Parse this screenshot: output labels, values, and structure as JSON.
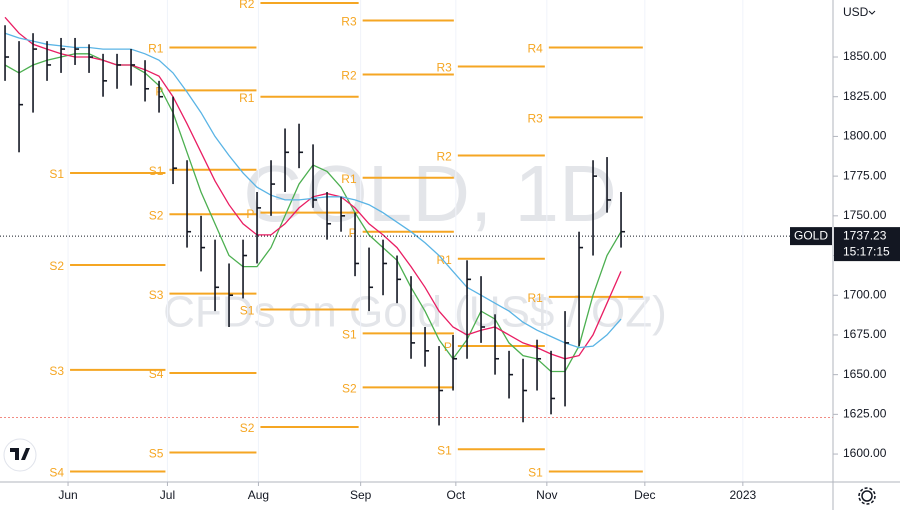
{
  "chart_data": {
    "type": "ohlc",
    "title": "GOLD, 1D",
    "subtitle": "CFDs on Gold (US$ / OZ)",
    "symbol": "GOLD",
    "currency": "USD",
    "last_price": 1737.23,
    "countdown": "15:17:15",
    "categories": [
      null,
      null,
      null,
      null,
      null,
      null,
      null,
      null,
      null,
      null,
      null,
      null,
      null,
      null,
      null,
      null,
      null,
      null,
      null,
      null,
      null,
      null,
      null,
      null,
      null,
      null,
      null,
      null,
      null,
      null,
      null,
      null,
      null,
      null,
      null,
      null,
      null,
      null,
      null,
      null,
      null,
      null,
      null,
      null,
      null
    ],
    "high": [
      1870,
      1860,
      1865,
      1860,
      1862,
      1862,
      1858,
      1852,
      1852,
      1855,
      1848,
      1835,
      1825,
      1785,
      1750,
      1735,
      1720,
      1735,
      1765,
      1785,
      1805,
      1808,
      1795,
      1765,
      1762,
      1752,
      1730,
      1735,
      1725,
      1712,
      1680,
      1668,
      1675,
      1722,
      1712,
      1688,
      1665,
      1660,
      1672,
      1665,
      1690,
      1740,
      1785,
      1787,
      1765
    ],
    "low": [
      1835,
      1790,
      1815,
      1835,
      1840,
      1845,
      1840,
      1825,
      1830,
      1832,
      1822,
      1815,
      1770,
      1730,
      1715,
      1690,
      1680,
      1698,
      1720,
      1750,
      1765,
      1780,
      1755,
      1735,
      1740,
      1712,
      1690,
      1700,
      1695,
      1660,
      1655,
      1618,
      1640,
      1660,
      1670,
      1650,
      1635,
      1620,
      1640,
      1625,
      1630,
      1668,
      1725,
      1752,
      1730
    ],
    "close": [
      1850,
      1820,
      1855,
      1845,
      1855,
      1855,
      1850,
      1835,
      1845,
      1845,
      1830,
      1825,
      1780,
      1740,
      1730,
      1705,
      1700,
      1725,
      1755,
      1770,
      1790,
      1790,
      1760,
      1745,
      1750,
      1720,
      1705,
      1720,
      1710,
      1670,
      1665,
      1640,
      1660,
      1710,
      1680,
      1660,
      1650,
      1640,
      1660,
      1635,
      1670,
      1730,
      1775,
      1760,
      1740
    ],
    "bar_color": "#131722",
    "series": [
      {
        "color": "#4caf50",
        "values": [
          1845,
          1840,
          1845,
          1848,
          1850,
          1852,
          1852,
          1848,
          1845,
          1845,
          1840,
          1832,
          1815,
          1790,
          1765,
          1745,
          1725,
          1718,
          1718,
          1730,
          1750,
          1770,
          1782,
          1778,
          1768,
          1752,
          1738,
          1730,
          1722,
          1705,
          1690,
          1672,
          1660,
          1672,
          1690,
          1685,
          1670,
          1662,
          1660,
          1652,
          1652,
          1668,
          1700,
          1725,
          1740
        ]
      },
      {
        "color": "#e91e63",
        "values": [
          1875,
          1865,
          1858,
          1855,
          1852,
          1850,
          1850,
          1848,
          1845,
          1845,
          1842,
          1838,
          1825,
          1808,
          1790,
          1772,
          1757,
          1745,
          1738,
          1738,
          1745,
          1755,
          1762,
          1764,
          1762,
          1755,
          1745,
          1738,
          1730,
          1718,
          1705,
          1690,
          1680,
          1675,
          1678,
          1680,
          1675,
          1670,
          1667,
          1663,
          1660,
          1662,
          1675,
          1695,
          1715
        ]
      },
      {
        "color": "#5ab4e5",
        "values": [
          1865,
          1862,
          1860,
          1858,
          1857,
          1856,
          1856,
          1855,
          1855,
          1855,
          1852,
          1848,
          1840,
          1828,
          1815,
          1800,
          1788,
          1777,
          1768,
          1763,
          1760,
          1760,
          1761,
          1762,
          1762,
          1760,
          1757,
          1752,
          1746,
          1740,
          1733,
          1725,
          1715,
          1705,
          1700,
          1695,
          1690,
          1683,
          1678,
          1674,
          1670,
          1667,
          1668,
          1675,
          1685
        ]
      }
    ],
    "pivot_color": "#f5a623",
    "pivots": [
      null,
      [
        {
          "label": "S1",
          "value": 1777
        },
        {
          "label": "S2",
          "value": 1719
        },
        {
          "label": "S3",
          "value": 1653
        },
        {
          "label": "S4",
          "value": 1589
        }
      ],
      [
        {
          "label": "R1",
          "value": 1856
        },
        {
          "label": "P",
          "value": 1829
        },
        {
          "label": "S1",
          "value": 1779
        },
        {
          "label": "S2",
          "value": 1751
        },
        {
          "label": "S3",
          "value": 1701
        },
        {
          "label": "S4",
          "value": 1651
        },
        {
          "label": "S5",
          "value": 1601
        }
      ],
      [
        {
          "label": "R2",
          "value": 1884
        },
        {
          "label": "R1",
          "value": 1825
        },
        {
          "label": "P",
          "value": 1752
        },
        {
          "label": "S1",
          "value": 1691
        },
        {
          "label": "S2",
          "value": 1617
        }
      ],
      [
        {
          "label": "R3",
          "value": 1873
        },
        {
          "label": "R2",
          "value": 1839
        },
        {
          "label": "R1",
          "value": 1774
        },
        {
          "label": "P",
          "value": 1740
        },
        {
          "label": "S1",
          "value": 1676
        },
        {
          "label": "S2",
          "value": 1642
        }
      ],
      [
        {
          "label": "R3",
          "value": 1844
        },
        {
          "label": "R2",
          "value": 1788
        },
        {
          "label": "R1",
          "value": 1723
        },
        {
          "label": "P",
          "value": 1668
        },
        {
          "label": "S1",
          "value": 1603
        }
      ],
      [
        {
          "label": "R4",
          "value": 1856
        },
        {
          "label": "R3",
          "value": 1812
        },
        {
          "label": "R1",
          "value": 1699
        },
        {
          "label": "S1",
          "value": 1589
        }
      ]
    ],
    "hlines": [
      {
        "value": 1623,
        "color": "#f28b82"
      }
    ],
    "xlim": [
      -0.36,
      59.14
    ],
    "ylim": [
      1582.4,
      1885.9
    ],
    "xticks": [
      {
        "value": 4.5,
        "label": "Jun"
      },
      {
        "value": 11.6,
        "label": "Jul"
      },
      {
        "value": 18.1,
        "label": "Aug"
      },
      {
        "value": 25.4,
        "label": "Sep"
      },
      {
        "value": 32.2,
        "label": "Oct"
      },
      {
        "value": 38.7,
        "label": "Nov"
      },
      {
        "value": 45.7,
        "label": "Dec"
      },
      {
        "value": 52.7,
        "label": "2023"
      }
    ],
    "yticks": [
      {
        "value": 1600,
        "label": "1600.00"
      },
      {
        "value": 1625,
        "label": "1625.00"
      },
      {
        "value": 1650,
        "label": "1650.00"
      },
      {
        "value": 1675,
        "label": "1675.00"
      },
      {
        "value": 1700,
        "label": "1700.00"
      },
      {
        "value": 1725,
        "label": "1725.00"
      },
      {
        "value": 1750,
        "label": "1750.00"
      },
      {
        "value": 1775,
        "label": "1775.00"
      },
      {
        "value": 1800,
        "label": "1800.00"
      },
      {
        "value": 1825,
        "label": "1825.00"
      },
      {
        "value": 1850,
        "label": "1850.00"
      }
    ]
  }
}
